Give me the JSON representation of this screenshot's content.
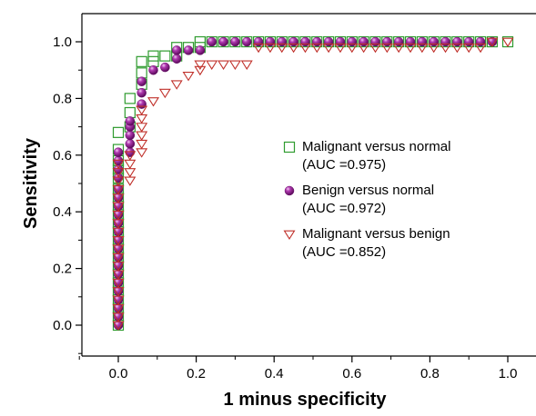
{
  "chart_data": {
    "type": "scatter",
    "xlabel": "1 minus specificity",
    "ylabel": "Sensitivity",
    "xlim": [
      -0.1,
      1.05
    ],
    "ylim": [
      -0.1,
      1.1
    ],
    "xticks": [
      "0.0",
      "0.2",
      "0.4",
      "0.6",
      "0.8",
      "1.0"
    ],
    "yticks": [
      "0.0",
      "0.2",
      "0.4",
      "0.6",
      "0.8",
      "1.0"
    ],
    "grid": false,
    "legend_position": "right",
    "series": [
      {
        "name": "Malignant versus normal",
        "auc_label": "(AUC =0.975)",
        "marker": "square",
        "color": "#2e9b2e",
        "x": [
          0,
          0,
          0,
          0,
          0,
          0,
          0,
          0,
          0,
          0,
          0,
          0,
          0,
          0,
          0,
          0,
          0,
          0,
          0,
          0,
          0,
          0,
          0.03,
          0.03,
          0.03,
          0.06,
          0.06,
          0.06,
          0.09,
          0.09,
          0.12,
          0.15,
          0.15,
          0.18,
          0.21,
          0.21,
          0.24,
          0.27,
          0.3,
          0.33,
          0.36,
          0.39,
          0.42,
          0.45,
          0.48,
          0.51,
          0.54,
          0.57,
          0.6,
          0.63,
          0.66,
          0.69,
          0.72,
          0.75,
          0.78,
          0.81,
          0.84,
          0.87,
          0.9,
          0.93,
          0.96,
          1.0
        ],
        "y": [
          0,
          0.03,
          0.06,
          0.09,
          0.12,
          0.15,
          0.18,
          0.21,
          0.24,
          0.27,
          0.3,
          0.33,
          0.36,
          0.39,
          0.42,
          0.45,
          0.48,
          0.52,
          0.55,
          0.58,
          0.62,
          0.68,
          0.7,
          0.75,
          0.8,
          0.85,
          0.89,
          0.93,
          0.93,
          0.95,
          0.95,
          0.95,
          0.98,
          0.98,
          0.98,
          1.0,
          1.0,
          1.0,
          1.0,
          1.0,
          1.0,
          1.0,
          1.0,
          1.0,
          1.0,
          1.0,
          1.0,
          1.0,
          1.0,
          1.0,
          1.0,
          1.0,
          1.0,
          1.0,
          1.0,
          1.0,
          1.0,
          1.0,
          1.0,
          1.0,
          1.0,
          1.0
        ]
      },
      {
        "name": "Benign versus normal",
        "auc_label": "(AUC =0.972)",
        "marker": "sphere",
        "color": "#8e1e8e",
        "x": [
          0,
          0,
          0,
          0,
          0,
          0,
          0,
          0,
          0,
          0,
          0,
          0,
          0,
          0,
          0,
          0,
          0,
          0,
          0,
          0,
          0,
          0.03,
          0.03,
          0.03,
          0.03,
          0.03,
          0.06,
          0.06,
          0.06,
          0.09,
          0.12,
          0.15,
          0.15,
          0.18,
          0.21,
          0.24,
          0.27,
          0.3,
          0.33,
          0.36,
          0.39,
          0.42,
          0.45,
          0.48,
          0.51,
          0.54,
          0.57,
          0.6,
          0.63,
          0.66,
          0.69,
          0.72,
          0.75,
          0.78,
          0.81,
          0.84,
          0.87,
          0.9,
          0.93,
          0.96
        ],
        "y": [
          0,
          0.03,
          0.06,
          0.09,
          0.12,
          0.15,
          0.18,
          0.21,
          0.24,
          0.27,
          0.3,
          0.33,
          0.36,
          0.39,
          0.42,
          0.45,
          0.48,
          0.52,
          0.55,
          0.58,
          0.61,
          0.61,
          0.64,
          0.67,
          0.7,
          0.72,
          0.78,
          0.82,
          0.86,
          0.9,
          0.91,
          0.94,
          0.97,
          0.97,
          0.97,
          1.0,
          1.0,
          1.0,
          1.0,
          1.0,
          1.0,
          1.0,
          1.0,
          1.0,
          1.0,
          1.0,
          1.0,
          1.0,
          1.0,
          1.0,
          1.0,
          1.0,
          1.0,
          1.0,
          1.0,
          1.0,
          1.0,
          1.0,
          1.0,
          1.0
        ]
      },
      {
        "name": "Malignant versus benign",
        "auc_label": "(AUC =0.852)",
        "marker": "triangle-down",
        "color": "#c0302a",
        "x": [
          0,
          0,
          0,
          0,
          0,
          0,
          0,
          0,
          0,
          0,
          0,
          0,
          0,
          0,
          0,
          0,
          0,
          0,
          0,
          0,
          0.03,
          0.03,
          0.03,
          0.03,
          0.06,
          0.06,
          0.06,
          0.06,
          0.06,
          0.06,
          0.09,
          0.12,
          0.15,
          0.18,
          0.21,
          0.21,
          0.24,
          0.27,
          0.3,
          0.33,
          0.36,
          0.39,
          0.42,
          0.45,
          0.48,
          0.51,
          0.54,
          0.57,
          0.6,
          0.63,
          0.66,
          0.69,
          0.72,
          0.75,
          0.78,
          0.81,
          0.84,
          0.87,
          0.9,
          0.93,
          0.96,
          1.0
        ],
        "y": [
          0,
          0.03,
          0.06,
          0.09,
          0.12,
          0.15,
          0.18,
          0.21,
          0.24,
          0.27,
          0.3,
          0.33,
          0.36,
          0.39,
          0.42,
          0.45,
          0.48,
          0.51,
          0.54,
          0.57,
          0.51,
          0.54,
          0.57,
          0.6,
          0.61,
          0.64,
          0.67,
          0.7,
          0.73,
          0.76,
          0.79,
          0.82,
          0.85,
          0.88,
          0.9,
          0.92,
          0.92,
          0.92,
          0.92,
          0.92,
          0.98,
          0.98,
          0.98,
          0.98,
          0.98,
          0.98,
          0.98,
          0.98,
          0.98,
          0.98,
          0.98,
          0.98,
          0.98,
          0.98,
          0.98,
          0.98,
          0.98,
          0.98,
          0.98,
          0.98,
          1.0,
          1.0
        ]
      }
    ]
  }
}
